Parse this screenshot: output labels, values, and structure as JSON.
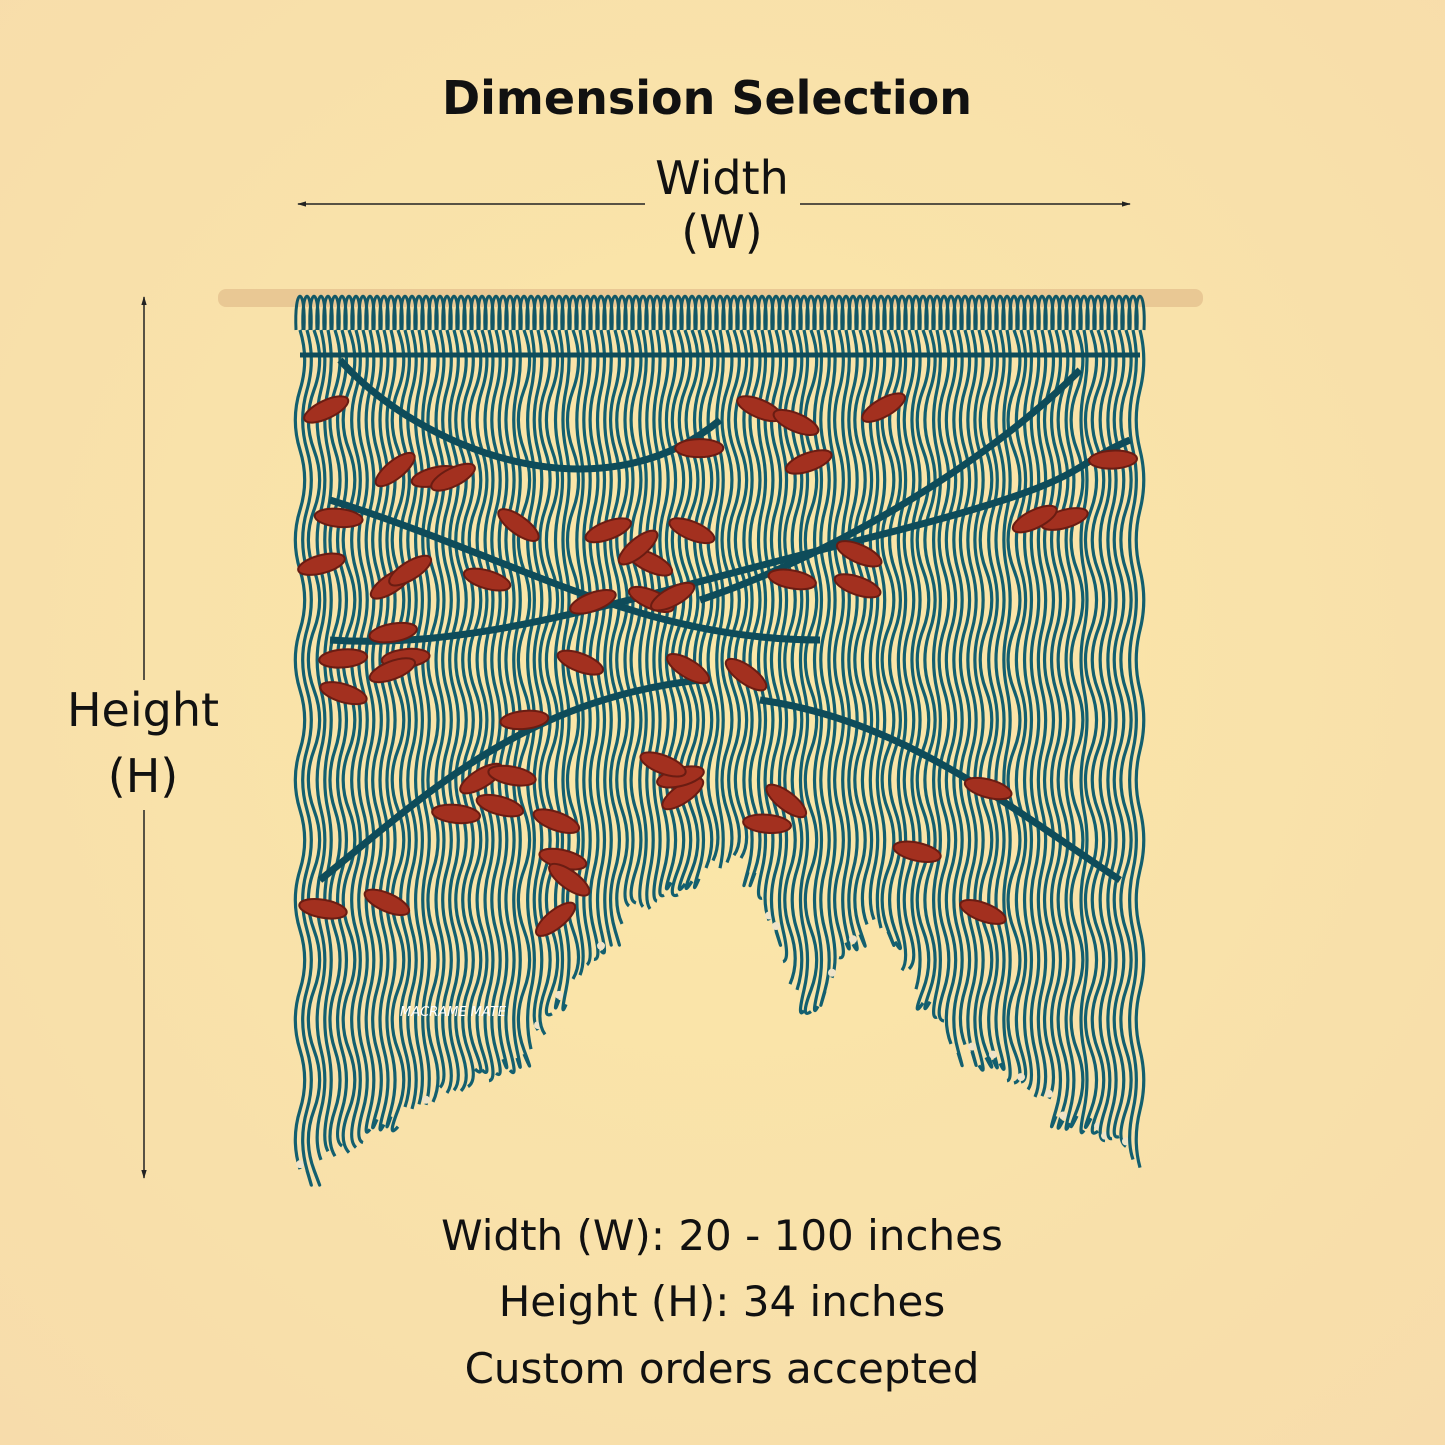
{
  "header": {
    "title": "Dimension Selection"
  },
  "width_label": {
    "name": "Width",
    "code": "(W)"
  },
  "height_label": {
    "name": "Height",
    "code": "(H)"
  },
  "logo": {
    "text": "MACRAME MATE"
  },
  "specs": [
    "Width (W): 20 - 100 inches",
    "Height (H): 34 inches",
    "Custom orders accepted"
  ]
}
